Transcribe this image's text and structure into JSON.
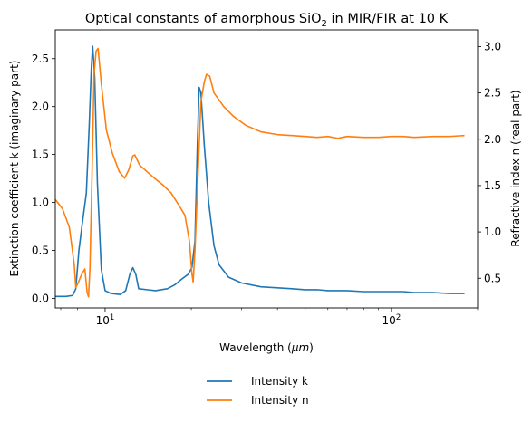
{
  "chart_data": {
    "type": "line",
    "title": "Optical constants of amorphous  SiO",
    "title_subscript": "2",
    "title_suffix": " in MIR/FIR at 10 K",
    "xlabel": "Wavelength (",
    "xlabel_unit": "μm",
    "xlabel_close": ")",
    "ylabel_left": "Extinction coefficient k (imaginary part)",
    "ylabel_right": "Refractive index n (real part)",
    "x_scale": "log",
    "xlim": [
      6.7,
      200
    ],
    "ylim_left": [
      -0.1,
      2.8
    ],
    "ylim_right": [
      0.18,
      3.18
    ],
    "x_ticks": [
      {
        "value": 10,
        "base": "10",
        "exp": "1"
      },
      {
        "value": 100,
        "base": "10",
        "exp": "2"
      }
    ],
    "y_ticks_left": [
      "0.0",
      "0.5",
      "1.0",
      "1.5",
      "2.0",
      "2.5"
    ],
    "y_ticks_right": [
      "0.5",
      "1.0",
      "1.5",
      "2.0",
      "2.5",
      "3.0"
    ],
    "legend_position": "bottom-center",
    "series": [
      {
        "name": "Intensity k",
        "axis": "left",
        "color": "#1f77b4",
        "points": [
          [
            6.7,
            0.02
          ],
          [
            7.3,
            0.02
          ],
          [
            7.7,
            0.03
          ],
          [
            7.9,
            0.1
          ],
          [
            8.1,
            0.5
          ],
          [
            8.3,
            0.75
          ],
          [
            8.6,
            1.1
          ],
          [
            8.8,
            1.8
          ],
          [
            8.95,
            2.4
          ],
          [
            9.05,
            2.63
          ],
          [
            9.2,
            2.3
          ],
          [
            9.4,
            1.2
          ],
          [
            9.7,
            0.3
          ],
          [
            10.0,
            0.08
          ],
          [
            10.5,
            0.05
          ],
          [
            11.3,
            0.04
          ],
          [
            11.8,
            0.08
          ],
          [
            12.2,
            0.25
          ],
          [
            12.5,
            0.32
          ],
          [
            12.8,
            0.25
          ],
          [
            13.1,
            0.1
          ],
          [
            14,
            0.09
          ],
          [
            15,
            0.08
          ],
          [
            16.5,
            0.1
          ],
          [
            17.5,
            0.14
          ],
          [
            18.5,
            0.2
          ],
          [
            19.5,
            0.25
          ],
          [
            20.1,
            0.32
          ],
          [
            20.6,
            0.6
          ],
          [
            21.0,
            1.6
          ],
          [
            21.3,
            2.2
          ],
          [
            21.6,
            2.15
          ],
          [
            22.2,
            1.6
          ],
          [
            23,
            1.0
          ],
          [
            24,
            0.55
          ],
          [
            25,
            0.35
          ],
          [
            27,
            0.22
          ],
          [
            30,
            0.16
          ],
          [
            35,
            0.12
          ],
          [
            40,
            0.11
          ],
          [
            45,
            0.1
          ],
          [
            50,
            0.09
          ],
          [
            55,
            0.09
          ],
          [
            60,
            0.08
          ],
          [
            70,
            0.08
          ],
          [
            80,
            0.07
          ],
          [
            90,
            0.07
          ],
          [
            100,
            0.07
          ],
          [
            110,
            0.07
          ],
          [
            120,
            0.06
          ],
          [
            140,
            0.06
          ],
          [
            160,
            0.05
          ],
          [
            180,
            0.05
          ]
        ]
      },
      {
        "name": "Intensity n",
        "axis": "right",
        "color": "#ff7f0e",
        "points": [
          [
            6.7,
            1.35
          ],
          [
            7.1,
            1.25
          ],
          [
            7.5,
            1.05
          ],
          [
            7.8,
            0.65
          ],
          [
            7.9,
            0.4
          ],
          [
            8.05,
            0.45
          ],
          [
            8.3,
            0.55
          ],
          [
            8.5,
            0.6
          ],
          [
            8.65,
            0.35
          ],
          [
            8.75,
            0.3
          ],
          [
            8.85,
            0.6
          ],
          [
            9.0,
            1.6
          ],
          [
            9.15,
            2.7
          ],
          [
            9.3,
            2.95
          ],
          [
            9.45,
            2.98
          ],
          [
            9.7,
            2.6
          ],
          [
            10.1,
            2.1
          ],
          [
            10.6,
            1.85
          ],
          [
            11.2,
            1.65
          ],
          [
            11.7,
            1.58
          ],
          [
            12.1,
            1.67
          ],
          [
            12.5,
            1.82
          ],
          [
            12.7,
            1.83
          ],
          [
            13.2,
            1.72
          ],
          [
            14,
            1.65
          ],
          [
            15,
            1.57
          ],
          [
            16,
            1.5
          ],
          [
            17,
            1.42
          ],
          [
            18,
            1.3
          ],
          [
            19,
            1.18
          ],
          [
            19.7,
            0.9
          ],
          [
            20.1,
            0.55
          ],
          [
            20.3,
            0.46
          ],
          [
            20.6,
            0.8
          ],
          [
            21.1,
            1.6
          ],
          [
            21.6,
            2.4
          ],
          [
            22.2,
            2.62
          ],
          [
            22.6,
            2.7
          ],
          [
            23.2,
            2.68
          ],
          [
            24,
            2.5
          ],
          [
            26,
            2.35
          ],
          [
            28,
            2.25
          ],
          [
            31,
            2.15
          ],
          [
            35,
            2.08
          ],
          [
            40,
            2.05
          ],
          [
            45,
            2.04
          ],
          [
            50,
            2.03
          ],
          [
            55,
            2.02
          ],
          [
            60,
            2.03
          ],
          [
            65,
            2.01
          ],
          [
            70,
            2.03
          ],
          [
            80,
            2.02
          ],
          [
            90,
            2.02
          ],
          [
            100,
            2.03
          ],
          [
            110,
            2.03
          ],
          [
            120,
            2.02
          ],
          [
            140,
            2.03
          ],
          [
            160,
            2.03
          ],
          [
            180,
            2.04
          ]
        ]
      }
    ]
  }
}
